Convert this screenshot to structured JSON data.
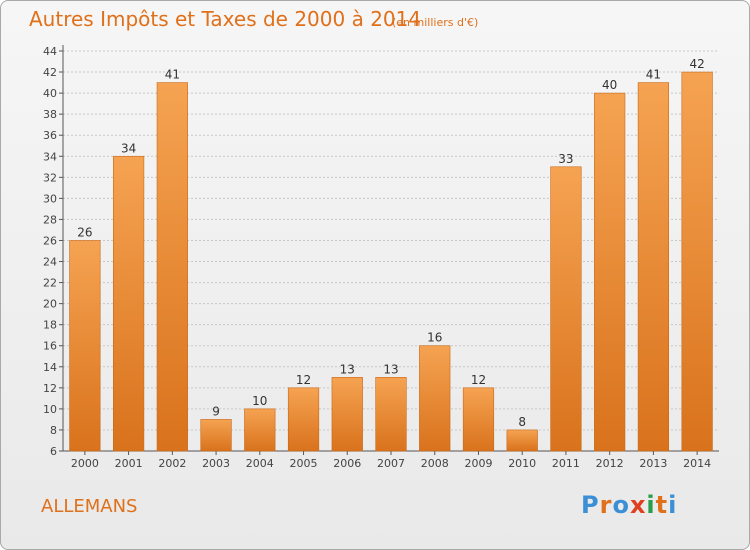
{
  "header": {
    "title": "Autres Impôts et Taxes de 2000 à 2014",
    "subtitle": "(en milliers d'€)"
  },
  "footer": {
    "commune": "ALLEMANS",
    "logo_text": "Proxiti"
  },
  "colors": {
    "title": "#e0701a",
    "bar_light": "#f5a352",
    "bar_dark": "#d9721c",
    "bar_edge": "#c8691a",
    "logo": [
      "#3a8fd6",
      "#e0701a",
      "#3a8fd6",
      "#e04020",
      "#2a9d4a",
      "#e0701a",
      "#3a8fd6"
    ]
  },
  "chart_data": {
    "type": "bar",
    "title": "Autres Impôts et Taxes de 2000 à 2014",
    "categories": [
      "2000",
      "2001",
      "2002",
      "2003",
      "2004",
      "2005",
      "2006",
      "2007",
      "2008",
      "2009",
      "2010",
      "2011",
      "2012",
      "2013",
      "2014"
    ],
    "values": [
      26,
      34,
      41,
      9,
      10,
      12,
      13,
      13,
      16,
      12,
      8,
      33,
      40,
      41,
      42
    ],
    "ylim": [
      6,
      44
    ],
    "yticks": [
      6,
      8,
      10,
      12,
      14,
      16,
      18,
      20,
      22,
      24,
      26,
      28,
      30,
      32,
      34,
      36,
      38,
      40,
      42,
      44
    ],
    "grid": true,
    "xlabel": "",
    "ylabel": ""
  }
}
